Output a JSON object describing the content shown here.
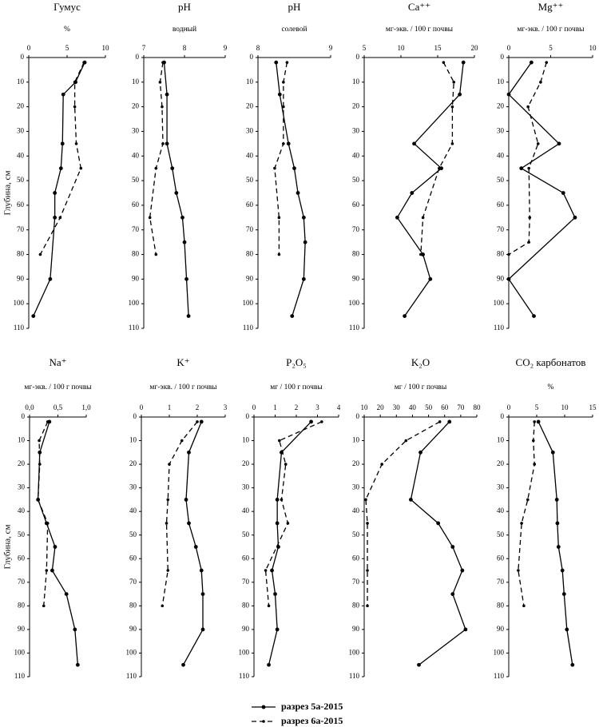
{
  "chart_data": [
    {
      "type": "line",
      "title": "Гумус",
      "subtitle": "%",
      "ylabel": "Глубина, см",
      "xlim": [
        0,
        10
      ],
      "xticks": [
        0,
        5,
        10
      ],
      "ylim": [
        0,
        110
      ],
      "yticks": [
        0,
        10,
        20,
        30,
        40,
        50,
        60,
        70,
        80,
        90,
        100,
        110
      ],
      "series": [
        {
          "color": "#000000",
          "dashed": false,
          "y": [
            2,
            10,
            15,
            35,
            45,
            55,
            65,
            90,
            105
          ],
          "values": [
            7.3,
            6.1,
            4.5,
            4.4,
            4.2,
            3.4,
            3.4,
            2.8,
            0.6
          ]
        },
        {
          "color": "#000000",
          "dashed": true,
          "y": [
            2,
            10,
            20,
            35,
            45,
            65,
            80
          ],
          "values": [
            7.2,
            6.0,
            6.0,
            6.2,
            6.8,
            4.1,
            1.5
          ]
        }
      ]
    },
    {
      "type": "line",
      "title": "pH",
      "subtitle": "водный",
      "xlim": [
        7,
        9
      ],
      "xticks": [
        7,
        8,
        9
      ],
      "ylim": [
        0,
        110
      ],
      "yticks": [
        0,
        10,
        20,
        30,
        40,
        50,
        60,
        70,
        80,
        90,
        100,
        110
      ],
      "series": [
        {
          "color": "#000000",
          "dashed": false,
          "y": [
            2,
            15,
            35,
            45,
            55,
            65,
            75,
            90,
            105
          ],
          "values": [
            7.5,
            7.57,
            7.57,
            7.7,
            7.8,
            7.95,
            8.0,
            8.05,
            8.1
          ]
        },
        {
          "color": "#000000",
          "dashed": true,
          "y": [
            2,
            10,
            20,
            35,
            45,
            65,
            80
          ],
          "values": [
            7.47,
            7.4,
            7.45,
            7.47,
            7.3,
            7.15,
            7.3
          ]
        }
      ]
    },
    {
      "type": "line",
      "title": "pH",
      "subtitle": "солевой",
      "xlim": [
        8,
        9
      ],
      "xticks": [
        8,
        9
      ],
      "ylim": [
        0,
        110
      ],
      "yticks": [
        0,
        10,
        20,
        30,
        40,
        50,
        60,
        70,
        80,
        90,
        100,
        110
      ],
      "series": [
        {
          "color": "#000000",
          "dashed": false,
          "y": [
            2,
            15,
            35,
            45,
            55,
            65,
            75,
            90,
            105
          ],
          "values": [
            8.25,
            8.3,
            8.42,
            8.5,
            8.55,
            8.63,
            8.65,
            8.63,
            8.47
          ]
        },
        {
          "color": "#000000",
          "dashed": true,
          "y": [
            2,
            10,
            20,
            35,
            45,
            65,
            80
          ],
          "values": [
            8.4,
            8.35,
            8.35,
            8.35,
            8.23,
            8.29,
            8.29
          ]
        }
      ]
    },
    {
      "type": "line",
      "title": "Ca⁺⁺",
      "subtitle": "мг-экв. / 100 г почвы",
      "xlim": [
        5,
        20
      ],
      "xticks": [
        5,
        10,
        15,
        20
      ],
      "ylim": [
        0,
        110
      ],
      "yticks": [
        0,
        10,
        20,
        30,
        40,
        50,
        60,
        70,
        80,
        90,
        100,
        110
      ],
      "series": [
        {
          "color": "#000000",
          "dashed": false,
          "y": [
            2,
            15,
            35,
            45,
            55,
            65,
            80,
            90,
            105
          ],
          "values": [
            18.5,
            18.0,
            11.8,
            15.5,
            11.5,
            9.5,
            13.0,
            14.0,
            10.5
          ]
        },
        {
          "color": "#000000",
          "dashed": true,
          "y": [
            2,
            10,
            20,
            35,
            45,
            65,
            80
          ],
          "values": [
            15.8,
            17.2,
            17.0,
            17.0,
            15.2,
            13.0,
            12.7
          ]
        }
      ]
    },
    {
      "type": "line",
      "title": "Mg⁺⁺",
      "subtitle": "мг-экв. / 100 г почвы",
      "xlim": [
        0,
        10
      ],
      "xticks": [
        0,
        5,
        10
      ],
      "ylim": [
        0,
        110
      ],
      "yticks": [
        0,
        10,
        20,
        30,
        40,
        50,
        60,
        70,
        80,
        90,
        100,
        110
      ],
      "series": [
        {
          "color": "#000000",
          "dashed": false,
          "y": [
            2,
            15,
            35,
            45,
            55,
            65,
            90,
            105
          ],
          "values": [
            2.7,
            0,
            6.0,
            1.5,
            6.5,
            7.9,
            0,
            3.0
          ]
        },
        {
          "color": "#000000",
          "dashed": true,
          "y": [
            2,
            10,
            20,
            35,
            45,
            65,
            75,
            80
          ],
          "values": [
            4.5,
            3.8,
            2.3,
            3.5,
            2.4,
            2.5,
            2.4,
            0
          ]
        }
      ]
    },
    {
      "type": "line",
      "title": "Na⁺",
      "subtitle": "мг-экв. / 100 г почвы",
      "ylabel": "Глубина, см",
      "xlim": [
        0,
        1
      ],
      "xticks": [
        {
          "value": 0,
          "label": "0,0"
        },
        {
          "value": 0.5,
          "label": "0,5"
        },
        {
          "value": 1,
          "label": "1,0"
        }
      ],
      "ylim": [
        0,
        110
      ],
      "yticks": [
        0,
        10,
        20,
        30,
        40,
        50,
        60,
        70,
        80,
        90,
        100,
        110
      ],
      "series": [
        {
          "color": "#000000",
          "dashed": false,
          "y": [
            2,
            15,
            35,
            45,
            55,
            65,
            75,
            90,
            105
          ],
          "values": [
            0.35,
            0.18,
            0.15,
            0.3,
            0.45,
            0.4,
            0.65,
            0.8,
            0.85
          ]
        },
        {
          "color": "#000000",
          "dashed": true,
          "y": [
            2,
            10,
            20,
            35,
            45,
            65,
            80
          ],
          "values": [
            0.32,
            0.17,
            0.18,
            0.15,
            0.32,
            0.3,
            0.25
          ]
        }
      ]
    },
    {
      "type": "line",
      "title": "K⁺",
      "subtitle": "мг-экв. / 100 г почвы",
      "xlim": [
        0,
        3
      ],
      "xticks": [
        0,
        1,
        2,
        3
      ],
      "ylim": [
        0,
        110
      ],
      "yticks": [
        0,
        10,
        20,
        30,
        40,
        50,
        60,
        70,
        80,
        90,
        100,
        110
      ],
      "series": [
        {
          "color": "#000000",
          "dashed": false,
          "y": [
            2,
            15,
            35,
            45,
            55,
            65,
            75,
            90,
            105
          ],
          "values": [
            2.15,
            1.7,
            1.6,
            1.7,
            1.95,
            2.15,
            2.2,
            2.2,
            1.5
          ]
        },
        {
          "color": "#000000",
          "dashed": true,
          "y": [
            2,
            10,
            20,
            35,
            45,
            65,
            80
          ],
          "values": [
            2.0,
            1.45,
            1.0,
            0.95,
            0.9,
            0.95,
            0.75
          ]
        }
      ]
    },
    {
      "type": "line",
      "title": "P₂O₅",
      "subtitle": "мг / 100 г почвы",
      "xlim": [
        0,
        4
      ],
      "xticks": [
        0,
        1,
        2,
        3,
        4
      ],
      "ylim": [
        0,
        110
      ],
      "yticks": [
        0,
        10,
        20,
        30,
        40,
        50,
        60,
        70,
        80,
        90,
        100,
        110
      ],
      "series": [
        {
          "color": "#000000",
          "dashed": false,
          "y": [
            2,
            15,
            35,
            45,
            55,
            65,
            75,
            90,
            105
          ],
          "values": [
            2.7,
            1.3,
            1.1,
            1.1,
            1.15,
            0.85,
            1.0,
            1.1,
            0.7
          ]
        },
        {
          "color": "#000000",
          "dashed": true,
          "y": [
            2,
            10,
            20,
            35,
            45,
            65,
            80
          ],
          "values": [
            3.2,
            1.2,
            1.5,
            1.3,
            1.6,
            0.55,
            0.7
          ]
        }
      ]
    },
    {
      "type": "line",
      "title": "K₂O",
      "subtitle": "мг / 100 г почвы",
      "xlim": [
        10,
        80
      ],
      "xticks": [
        10,
        20,
        30,
        40,
        50,
        60,
        70,
        80
      ],
      "ylim": [
        0,
        110
      ],
      "yticks": [
        0,
        10,
        20,
        30,
        40,
        50,
        60,
        70,
        80,
        90,
        100,
        110
      ],
      "series": [
        {
          "color": "#000000",
          "dashed": false,
          "y": [
            2,
            15,
            35,
            45,
            55,
            65,
            75,
            90,
            105
          ],
          "values": [
            63,
            45,
            39,
            56,
            65,
            71,
            65,
            73,
            44
          ]
        },
        {
          "color": "#000000",
          "dashed": true,
          "y": [
            2,
            10,
            20,
            35,
            45,
            65,
            80
          ],
          "values": [
            57,
            36,
            21,
            11,
            12,
            12,
            12
          ]
        }
      ]
    },
    {
      "type": "line",
      "title": "CO₂ карбонатов",
      "subtitle": "%",
      "xlim": [
        0,
        15
      ],
      "xticks": [
        0,
        5,
        10,
        15
      ],
      "ylim": [
        0,
        110
      ],
      "yticks": [
        0,
        10,
        20,
        30,
        40,
        50,
        60,
        70,
        80,
        90,
        100,
        110
      ],
      "series": [
        {
          "color": "#000000",
          "dashed": false,
          "y": [
            2,
            15,
            35,
            45,
            55,
            65,
            75,
            90,
            105
          ],
          "values": [
            5.3,
            7.9,
            8.6,
            8.7,
            8.9,
            9.6,
            9.9,
            10.4,
            11.4
          ]
        },
        {
          "color": "#000000",
          "dashed": true,
          "y": [
            2,
            10,
            20,
            35,
            45,
            65,
            80
          ],
          "values": [
            4.6,
            4.4,
            4.6,
            3.4,
            2.3,
            1.7,
            2.7
          ]
        }
      ]
    }
  ],
  "legend": {
    "entries": [
      "разрез 5а-2015",
      "разрез 6а-2015"
    ]
  }
}
